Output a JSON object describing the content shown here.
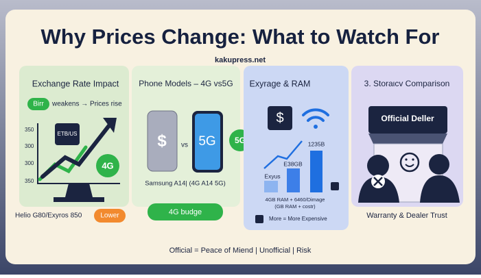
{
  "title": "Why Prices Change: What to Watch For",
  "site": "kakupress.net",
  "panel1": {
    "title": "Exchange Rate Impact",
    "pill": "Birr",
    "pill_text": "weakens → Prices rise",
    "axis_labels": [
      "350",
      "300",
      "300",
      "350"
    ],
    "chip": "ETB/US",
    "badge": "4G",
    "model": "Helio G80/Exyros 850",
    "tag": "Lower"
  },
  "panel2": {
    "title": "Phone Models – 4G vs5G",
    "phone1": "$",
    "vs": "vs",
    "phone2": "5G",
    "badge": "5G",
    "caption": "Samsung A14|  (4G A14 5G)",
    "button": "4G budge"
  },
  "panel3": {
    "title": "Exyrage & RAM",
    "chip": "$",
    "bar_labels": [
      "Exyus",
      "E38GB",
      "1235B"
    ],
    "note": [
      "4GB RAM + 6460/Dimage",
      "(GB RAM + costr)"
    ],
    "legend": "More = More Expensive"
  },
  "panel4": {
    "title": "3. Storaιcv Comparison",
    "sign": "Official Deller",
    "caption": "Warranty & Dealer Trust"
  },
  "footer": "Official = Peace of Miend | Unofficial | Risk"
}
